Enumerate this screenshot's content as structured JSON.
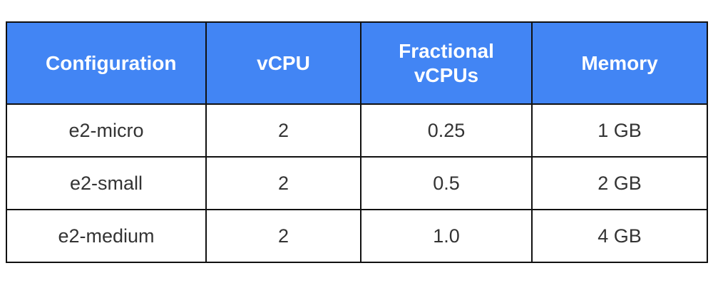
{
  "table": {
    "header": [
      "Configuration",
      "vCPU",
      "Fractional vCPUs",
      "Memory"
    ],
    "rows": [
      [
        "e2-micro",
        "2",
        "0.25",
        "1 GB"
      ],
      [
        "e2-small",
        "2",
        "0.5",
        "2 GB"
      ],
      [
        "e2-medium",
        "2",
        "1.0",
        "4 GB"
      ]
    ]
  }
}
